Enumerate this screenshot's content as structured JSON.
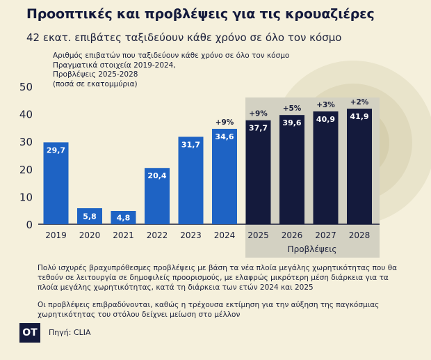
{
  "title": "Προοπτικές και προβλέψεις για τις κρουαζιέρες",
  "subtitle": "42 εκατ. επιβάτες ταξιδεύουν κάθε χρόνο σε όλο τον κόσμο",
  "chart_desc": [
    "Αριθμός επιβατών που ταξιδεύουν κάθε χρόνο σε όλο τον κόσμο",
    "Πραγματικά στοιχεία 2019-2024,",
    "Προβλέψεις 2025-2028",
    "(ποσά σε εκατομμύρια)"
  ],
  "forecast_label": "Προβλέψεις",
  "notes": [
    "Πολύ ισχυρές βραχυπρόθεσμες προβλέψεις με βάση τα νέα πλοία μεγάλης χωρητικότητας που θα τεθούν σε λειτουργία σε δημοφιλείς προορισμούς, με ελαφρώς μικρότερη μέση διάρκεια για τα πλοία μεγάλης χωρητικότητας, κατά τη διάρκεια των ετών 2024 και 2025",
    "Οι προβλέψεις επιβραδύνονται, καθώς η τρέχουσα εκτίμηση για την αύξηση της παγκόσμιας χωρητικότητας του στόλου δείχνει μείωση στο μέλλον"
  ],
  "logo": "OT",
  "source": "Πηγή: CLIA",
  "chart_data": {
    "type": "bar",
    "categories": [
      "2019",
      "2020",
      "2021",
      "2022",
      "2023",
      "2024",
      "2025",
      "2026",
      "2027",
      "2028"
    ],
    "values": [
      29.7,
      5.8,
      4.8,
      20.4,
      31.7,
      34.6,
      37.7,
      39.6,
      40.9,
      41.9
    ],
    "value_labels": [
      "29,7",
      "5,8",
      "4,8",
      "20,4",
      "31,7",
      "34,6",
      "37,7",
      "39,6",
      "40,9",
      "41,9"
    ],
    "growth_labels": [
      "",
      "",
      "",
      "",
      "",
      "+9%",
      "+9%",
      "+5%",
      "+3%",
      "+2%"
    ],
    "forecast": [
      false,
      false,
      false,
      false,
      false,
      false,
      true,
      true,
      true,
      true
    ],
    "yticks": [
      0,
      10,
      20,
      30,
      40,
      50
    ],
    "ylim": [
      0,
      50
    ],
    "colors": {
      "actual": "#1e63c4",
      "forecast": "#141a3c",
      "forecast_bg": "#d3d1c2",
      "axis": "#1a1f3a",
      "text": "#1a1f3a"
    }
  }
}
